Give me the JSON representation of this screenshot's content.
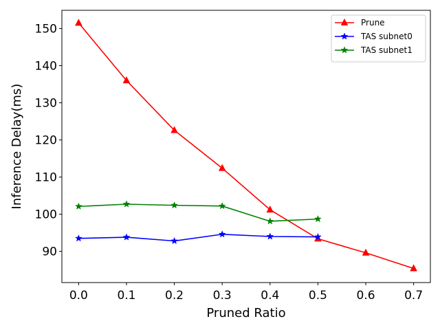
{
  "chart_data": {
    "type": "line",
    "title": "",
    "xlabel": "Pruned Ratio",
    "ylabel": "Inference Delay(ms)",
    "xlim": [
      -0.035,
      0.735
    ],
    "ylim": [
      81.6,
      154.9
    ],
    "xticks": [
      0.0,
      0.1,
      0.2,
      0.3,
      0.4,
      0.5,
      0.6,
      0.7
    ],
    "xtick_labels": [
      "0.0",
      "0.1",
      "0.2",
      "0.3",
      "0.4",
      "0.5",
      "0.6",
      "0.7"
    ],
    "yticks": [
      90,
      100,
      110,
      120,
      130,
      140,
      150
    ],
    "ytick_labels": [
      "90",
      "100",
      "110",
      "120",
      "130",
      "140",
      "150"
    ],
    "grid": false,
    "legend_position": "top-right",
    "series": [
      {
        "name": "Prune",
        "color": "#ff0000",
        "marker": "triangle",
        "x": [
          0.0,
          0.1,
          0.2,
          0.3,
          0.4,
          0.5,
          0.6,
          0.7
        ],
        "y": [
          151.5,
          136.0,
          122.6,
          112.4,
          101.2,
          93.4,
          89.6,
          85.4
        ]
      },
      {
        "name": "TAS subnet0",
        "color": "#0000ff",
        "marker": "star",
        "x": [
          0.0,
          0.1,
          0.2,
          0.3,
          0.4,
          0.5
        ],
        "y": [
          93.5,
          93.8,
          92.8,
          94.6,
          94.0,
          93.9
        ]
      },
      {
        "name": "TAS subnet1",
        "color": "#008000",
        "marker": "star",
        "x": [
          0.0,
          0.1,
          0.2,
          0.3,
          0.4,
          0.5
        ],
        "y": [
          102.1,
          102.7,
          102.4,
          102.2,
          98.1,
          98.7
        ]
      }
    ]
  }
}
